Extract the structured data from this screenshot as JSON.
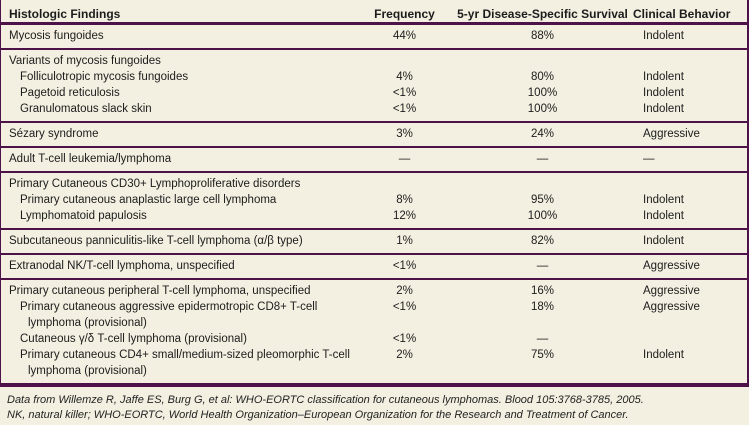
{
  "colors": {
    "background": "#f3efe1",
    "rule": "#4d1349",
    "text": "#1c1c1c"
  },
  "table": {
    "columns": [
      "Histologic Findings",
      "Frequency",
      "5-yr Disease-Specific Survival",
      "Clinical Behavior"
    ],
    "rows": [
      {
        "name": "Mycosis fungoides",
        "level": 0,
        "frequency": "44%",
        "survival": "88%",
        "behavior": "Indolent"
      },
      {
        "name": "Variants of mycosis fungoides",
        "level": 0,
        "frequency": "",
        "survival": "",
        "behavior": ""
      },
      {
        "name": "Folliculotropic mycosis fungoides",
        "level": 1,
        "frequency": "4%",
        "survival": "80%",
        "behavior": "Indolent"
      },
      {
        "name": "Pagetoid reticulosis",
        "level": 1,
        "frequency": "<1%",
        "survival": "100%",
        "behavior": "Indolent"
      },
      {
        "name": "Granulomatous slack skin",
        "level": 1,
        "frequency": "<1%",
        "survival": "100%",
        "behavior": "Indolent"
      },
      {
        "name": "Sézary syndrome",
        "level": 0,
        "frequency": "3%",
        "survival": "24%",
        "behavior": "Aggressive"
      },
      {
        "name": "Adult T-cell leukemia/lymphoma",
        "level": 0,
        "frequency": "—",
        "survival": "—",
        "behavior": "—"
      },
      {
        "name": "Primary Cutaneous CD30+ Lymphoproliferative disorders",
        "level": 0,
        "frequency": "",
        "survival": "",
        "behavior": ""
      },
      {
        "name": "Primary cutaneous anaplastic large cell lymphoma",
        "level": 1,
        "frequency": "8%",
        "survival": "95%",
        "behavior": "Indolent"
      },
      {
        "name": "Lymphomatoid papulosis",
        "level": 1,
        "frequency": "12%",
        "survival": "100%",
        "behavior": "Indolent"
      },
      {
        "name": "Subcutaneous panniculitis-like T-cell lymphoma (α/β type)",
        "level": 0,
        "frequency": "1%",
        "survival": "82%",
        "behavior": "Indolent"
      },
      {
        "name": "Extranodal NK/T-cell lymphoma, unspecified",
        "level": 0,
        "frequency": "<1%",
        "survival": "—",
        "behavior": "Aggressive"
      },
      {
        "name": "Primary cutaneous peripheral T-cell lymphoma, unspecified",
        "level": 0,
        "frequency": "2%",
        "survival": "16%",
        "behavior": "Aggressive"
      },
      {
        "name": "Primary cutaneous aggressive epidermotropic CD8+ T-cell lymphoma (provisional)",
        "level": 1,
        "frequency": "<1%",
        "survival": "18%",
        "behavior": "Aggressive"
      },
      {
        "name": "Cutaneous γ/δ T-cell lymphoma (provisional)",
        "level": 1,
        "frequency": "<1%",
        "survival": "—",
        "behavior": ""
      },
      {
        "name": "Primary cutaneous CD4+ small/medium-sized pleomorphic T-cell lymphoma (provisional)",
        "level": 1,
        "frequency": "2%",
        "survival": "75%",
        "behavior": "Indolent"
      }
    ]
  },
  "footnotes": [
    "Data from Willemze R, Jaffe ES, Burg G, et al: WHO-EORTC classification for cutaneous lymphomas. Blood 105:3768-3785, 2005.",
    "NK, natural killer; WHO-EORTC, World Health Organization–European Organization for the Research and Treatment of Cancer."
  ]
}
